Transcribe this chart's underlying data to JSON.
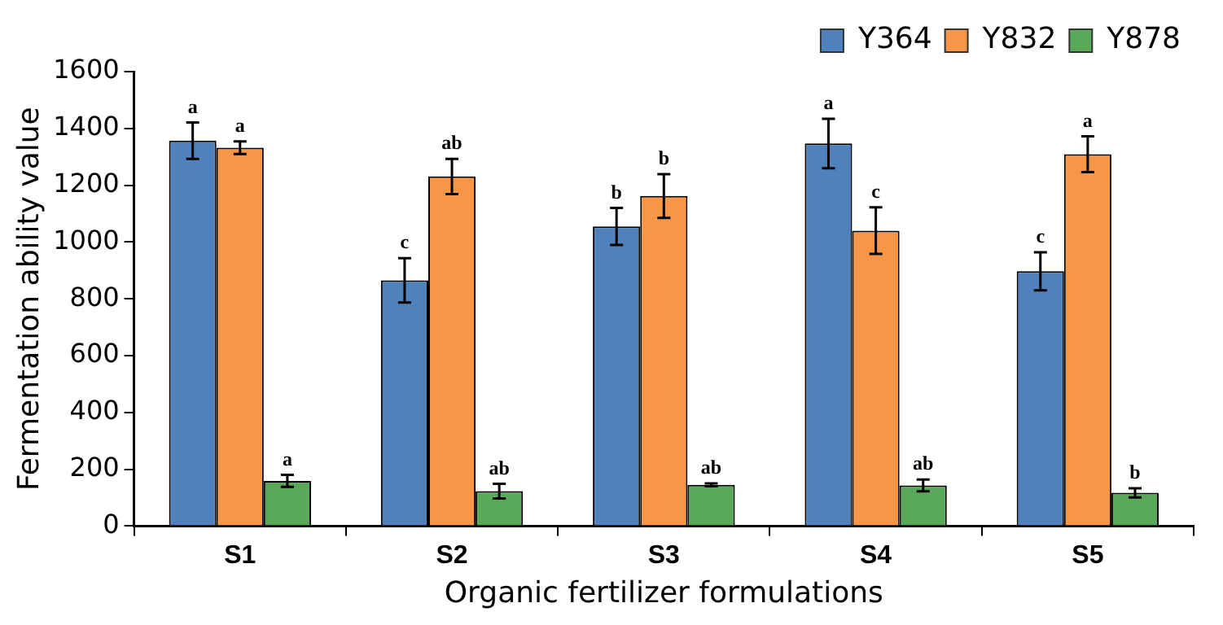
{
  "chart_data": {
    "type": "bar",
    "xlabel": "Organic fertilizer formulations",
    "ylabel": "Fermentation ability value",
    "categories": [
      "S1",
      "S2",
      "S3",
      "S4",
      "S5"
    ],
    "series": [
      {
        "name": "Y364",
        "color": "#4f81bd",
        "values": [
          1357,
          865,
          1055,
          1347,
          897
        ],
        "errors": [
          64,
          78,
          65,
          87,
          67
        ],
        "value_labels": [
          "a",
          "c",
          "b",
          "a",
          "c"
        ]
      },
      {
        "name": "Y832",
        "color": "#f79646",
        "values": [
          1332,
          1231,
          1162,
          1040,
          1309
        ],
        "errors": [
          22,
          62,
          77,
          82,
          63
        ],
        "value_labels": [
          "a",
          "ab",
          "b",
          "c",
          "a"
        ]
      },
      {
        "name": "Y878",
        "color": "#5aa85a",
        "values": [
          159,
          123,
          145,
          143,
          117
        ],
        "errors": [
          21,
          26,
          5,
          21,
          16
        ],
        "value_labels": [
          "a",
          "ab",
          "ab",
          "ab",
          "b"
        ]
      }
    ],
    "ylim": [
      0,
      1600
    ],
    "yticks": [
      0,
      200,
      400,
      600,
      800,
      1000,
      1200,
      1400,
      1600
    ],
    "grid": false,
    "legend": "top"
  }
}
